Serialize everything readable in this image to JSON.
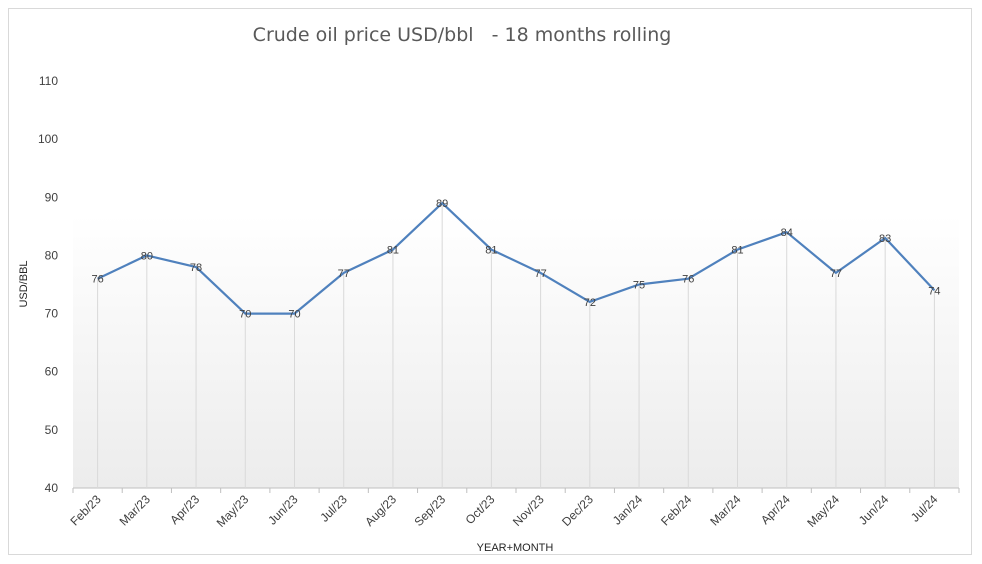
{
  "chart_data": {
    "type": "line",
    "title": "Crude oil price USD/bbl   - 18 months rolling",
    "xlabel": "YEAR+MONTH",
    "ylabel": "USD/BBL",
    "ylim": [
      40,
      110
    ],
    "yticks": [
      "40",
      "50",
      "60",
      "70",
      "80",
      "90",
      "100",
      "110"
    ],
    "categories": [
      "Feb/23",
      "Mar/23",
      "Apr/23",
      "May/23",
      "Jun/23",
      "Jul/23",
      "Aug/23",
      "Sep/23",
      "Oct/23",
      "Nov/23",
      "Dec/23",
      "Jan/24",
      "Feb/24",
      "Mar/24",
      "Apr/24",
      "May/24",
      "Jun/24",
      "Jul/24"
    ],
    "values": [
      76,
      80,
      78,
      70,
      70,
      77,
      81,
      89,
      81,
      77,
      72,
      75,
      76,
      81,
      84,
      77,
      83,
      74
    ],
    "data_labels": [
      "76",
      "80",
      "78",
      "70",
      "70",
      "77",
      "81",
      "89",
      "81",
      "77",
      "72",
      "75",
      "76",
      "81",
      "84",
      "77",
      "83",
      "74"
    ],
    "line_color": "#4f81bd",
    "drop_lines": true,
    "grid": false,
    "legend": "none"
  }
}
